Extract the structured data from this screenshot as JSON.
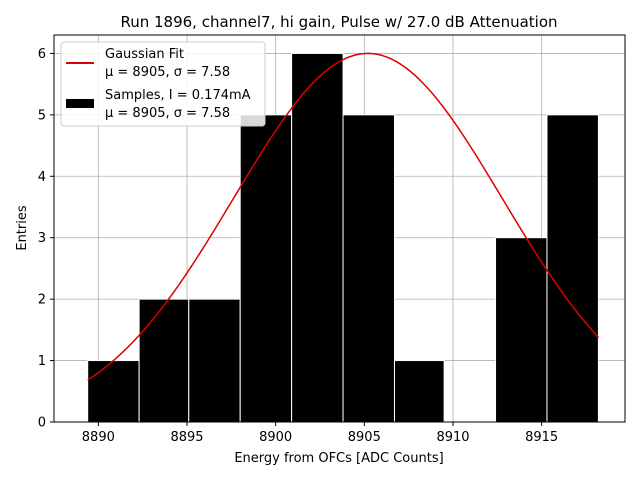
{
  "chart_data": {
    "type": "bar",
    "title": "Run 1896, channel7, hi gain, Pulse w/ 27.0 dB Attenuation",
    "xlabel": "Energy from OFCs [ADC Counts]",
    "ylabel": "Entries",
    "xlim": [
      8887.5,
      8919.7
    ],
    "ylim": [
      0,
      6.3
    ],
    "x_ticks": [
      8890,
      8895,
      8900,
      8905,
      8910,
      8915
    ],
    "y_ticks": [
      0,
      1,
      2,
      3,
      4,
      5,
      6
    ],
    "grid": true,
    "legend_position": "top-left",
    "bar_color": "#000000",
    "fit_color": "#dd0000",
    "histogram": {
      "name": "Samples, I = 0.174mA",
      "stats": "μ = 8905, σ = 7.58",
      "bins": [
        {
          "x0": 8889.4,
          "x1": 8892.3,
          "count": 1
        },
        {
          "x0": 8892.3,
          "x1": 8895.1,
          "count": 2
        },
        {
          "x0": 8895.1,
          "x1": 8898.0,
          "count": 2
        },
        {
          "x0": 8898.0,
          "x1": 8900.9,
          "count": 5
        },
        {
          "x0": 8900.9,
          "x1": 8903.8,
          "count": 6
        },
        {
          "x0": 8903.8,
          "x1": 8906.7,
          "count": 5
        },
        {
          "x0": 8906.7,
          "x1": 8909.5,
          "count": 1
        },
        {
          "x0": 8909.5,
          "x1": 8912.4,
          "count": 0
        },
        {
          "x0": 8912.4,
          "x1": 8915.3,
          "count": 3
        },
        {
          "x0": 8915.3,
          "x1": 8918.2,
          "count": 5
        }
      ]
    },
    "fit": {
      "name": "Gaussian Fit",
      "stats": "μ = 8905, σ = 7.58",
      "mu": 8905.2,
      "sigma": 7.58,
      "amplitude": 6.0,
      "x_range": [
        8889.4,
        8918.2
      ]
    }
  }
}
